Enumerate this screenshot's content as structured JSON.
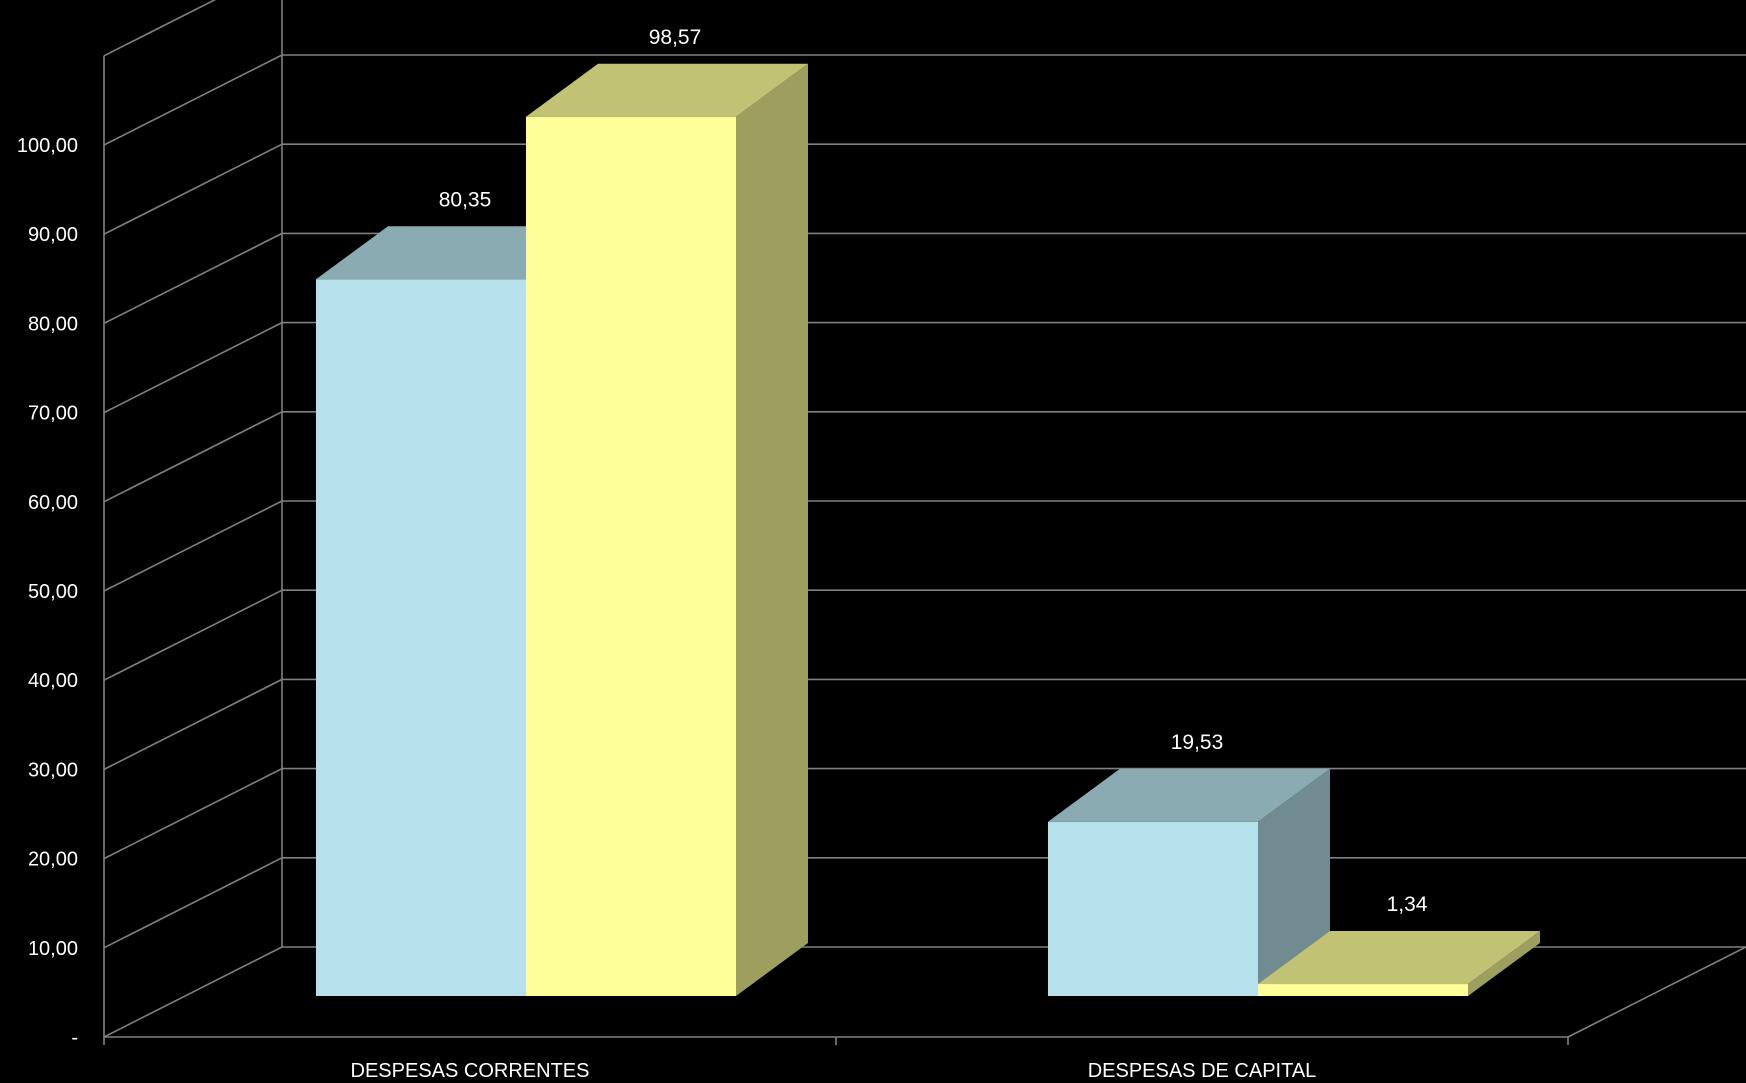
{
  "chart_data": {
    "type": "bar",
    "style": "3d-clustered-column",
    "categories": [
      "DESPESAS CORRENTES",
      "DESPESAS DE CAPITAL"
    ],
    "series": [
      {
        "values": [
          80.35,
          19.53
        ],
        "labels": [
          "80,35",
          "19,53"
        ],
        "color": "#b7e1ea"
      },
      {
        "values": [
          98.57,
          1.34
        ],
        "labels": [
          "98,57",
          "1,34"
        ],
        "color": "#ffff99"
      }
    ],
    "y_ticks": [
      {
        "value": 0,
        "label": "-"
      },
      {
        "value": 10,
        "label": "10,00"
      },
      {
        "value": 20,
        "label": "20,00"
      },
      {
        "value": 30,
        "label": "30,00"
      },
      {
        "value": 40,
        "label": "40,00"
      },
      {
        "value": 50,
        "label": "50,00"
      },
      {
        "value": 60,
        "label": "60,00"
      },
      {
        "value": 70,
        "label": "70,00"
      },
      {
        "value": 80,
        "label": "80,00"
      },
      {
        "value": 90,
        "label": "90,00"
      },
      {
        "value": 100,
        "label": "100,00"
      }
    ],
    "ylim": [
      0,
      110
    ],
    "grid": true,
    "legend": "none",
    "background": "#000000",
    "grid_color": "#808080",
    "label_color": "#ffffff"
  }
}
